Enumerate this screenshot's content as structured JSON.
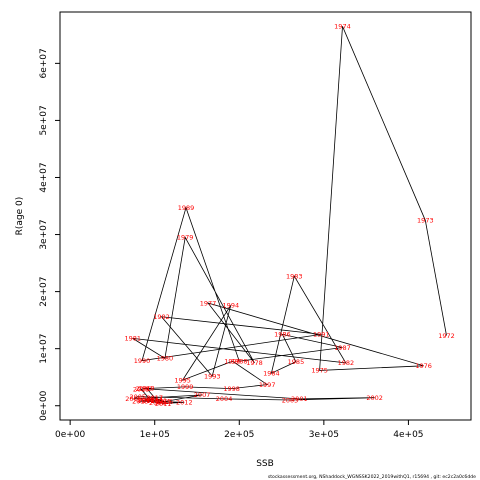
{
  "chart_data": {
    "type": "line",
    "xlabel": "SSB",
    "ylabel": "R(age 0)",
    "footnote": "stockassessment.org, NShaddock_WGNSSK2022_2019withQ1, r15694 , git: ec2c2a0c6dde",
    "xlim": [
      -12000,
      474000
    ],
    "ylim": [
      -2500000,
      69000000
    ],
    "x_ticks": [
      0,
      100000,
      200000,
      300000,
      400000
    ],
    "x_tick_labels": [
      "0e+00",
      "1e+05",
      "2e+05",
      "3e+05",
      "4e+05"
    ],
    "y_ticks": [
      0,
      10000000,
      20000000,
      30000000,
      40000000,
      50000000,
      60000000
    ],
    "y_tick_labels": [
      "0e+00",
      "1e+07",
      "2e+07",
      "3e+07",
      "4e+07",
      "5e+07",
      "6e+07"
    ],
    "line_color": "#000000",
    "label_color": "#ff0000",
    "points": [
      {
        "year": "1972",
        "ssb": 445000,
        "rec": 12300000
      },
      {
        "year": "1973",
        "ssb": 420000,
        "rec": 32500000
      },
      {
        "year": "1974",
        "ssb": 322000,
        "rec": 66500000
      },
      {
        "year": "1975",
        "ssb": 295000,
        "rec": 6200000
      },
      {
        "year": "1976",
        "ssb": 418000,
        "rec": 7000000
      },
      {
        "year": "1977",
        "ssb": 163000,
        "rec": 18000000
      },
      {
        "year": "1978",
        "ssb": 218000,
        "rec": 7500000
      },
      {
        "year": "1979",
        "ssb": 136000,
        "rec": 29500000
      },
      {
        "year": "1980",
        "ssb": 112000,
        "rec": 8300000
      },
      {
        "year": "1981",
        "ssb": 74000,
        "rec": 11800000
      },
      {
        "year": "1982",
        "ssb": 326000,
        "rec": 7500000
      },
      {
        "year": "1983",
        "ssb": 265000,
        "rec": 22700000
      },
      {
        "year": "1984",
        "ssb": 238000,
        "rec": 5700000
      },
      {
        "year": "1985",
        "ssb": 267000,
        "rec": 7700000
      },
      {
        "year": "1986",
        "ssb": 251000,
        "rec": 12500000
      },
      {
        "year": "1987",
        "ssb": 322000,
        "rec": 10200000
      },
      {
        "year": "1988",
        "ssb": 200000,
        "rec": 7800000
      },
      {
        "year": "1989",
        "ssb": 137000,
        "rec": 34700000
      },
      {
        "year": "1990",
        "ssb": 85000,
        "rec": 7900000
      },
      {
        "year": "1991",
        "ssb": 297000,
        "rec": 12500000
      },
      {
        "year": "1992",
        "ssb": 108000,
        "rec": 15600000
      },
      {
        "year": "1993",
        "ssb": 168000,
        "rec": 5200000
      },
      {
        "year": "1994",
        "ssb": 190000,
        "rec": 17600000
      },
      {
        "year": "1995",
        "ssb": 133000,
        "rec": 4500000
      },
      {
        "year": "1996",
        "ssb": 192000,
        "rec": 7800000
      },
      {
        "year": "1997",
        "ssb": 233000,
        "rec": 3700000
      },
      {
        "year": "1998",
        "ssb": 191000,
        "rec": 3000000
      },
      {
        "year": "1999",
        "ssb": 136000,
        "rec": 3300000
      },
      {
        "year": "2000",
        "ssb": 87000,
        "rec": 3000000
      },
      {
        "year": "2001",
        "ssb": 271000,
        "rec": 1200000
      },
      {
        "year": "2002",
        "ssb": 360000,
        "rec": 1400000
      },
      {
        "year": "2003",
        "ssb": 260000,
        "rec": 1000000
      },
      {
        "year": "2004",
        "ssb": 182000,
        "rec": 1200000
      },
      {
        "year": "2005",
        "ssb": 80000,
        "rec": 1600000
      },
      {
        "year": "2006",
        "ssb": 75000,
        "rec": 1200000
      },
      {
        "year": "2007",
        "ssb": 156000,
        "rec": 1900000
      },
      {
        "year": "2008",
        "ssb": 103000,
        "rec": 500000
      },
      {
        "year": "2009",
        "ssb": 89000,
        "rec": 1100000
      },
      {
        "year": "2010",
        "ssb": 90000,
        "rec": 900000
      },
      {
        "year": "2011",
        "ssb": 110000,
        "rec": 400000
      },
      {
        "year": "2012",
        "ssb": 135000,
        "rec": 600000
      },
      {
        "year": "2013",
        "ssb": 83000,
        "rec": 800000
      },
      {
        "year": "2014",
        "ssb": 100000,
        "rec": 1200000
      },
      {
        "year": "2015",
        "ssb": 110000,
        "rec": 800000
      },
      {
        "year": "2016",
        "ssb": 112000,
        "rec": 700000
      },
      {
        "year": "2017",
        "ssb": 100000,
        "rec": 1400000
      },
      {
        "year": "2018",
        "ssb": 90000,
        "rec": 3100000
      },
      {
        "year": "2019",
        "ssb": 84000,
        "rec": 2900000
      },
      {
        "year": "2020",
        "ssb": 95000,
        "rec": 1000000
      },
      {
        "year": "2021",
        "ssb": 105000,
        "rec": 900000
      }
    ]
  }
}
